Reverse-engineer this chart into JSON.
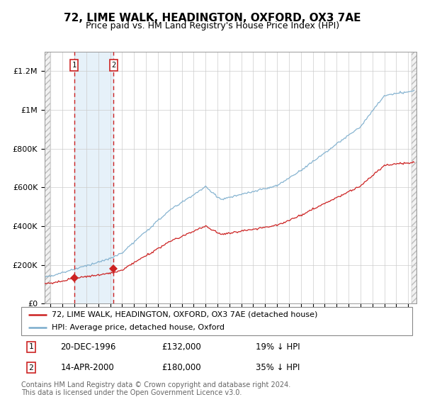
{
  "title": "72, LIME WALK, HEADINGTON, OXFORD, OX3 7AE",
  "subtitle": "Price paid vs. HM Land Registry's House Price Index (HPI)",
  "ylim": [
    0,
    1300000
  ],
  "yticks": [
    0,
    200000,
    400000,
    600000,
    800000,
    1000000,
    1200000
  ],
  "ytick_labels": [
    "£0",
    "£200K",
    "£400K",
    "£600K",
    "£800K",
    "£1M",
    "£1.2M"
  ],
  "xlim_start": 1994.5,
  "xlim_end": 2025.7,
  "sale1_date": 1996.97,
  "sale1_price": 132000,
  "sale1_label": "1",
  "sale1_hpi_pct": "19% ↓ HPI",
  "sale1_date_str": "20-DEC-1996",
  "sale2_date": 2000.28,
  "sale2_price": 180000,
  "sale2_label": "2",
  "sale2_hpi_pct": "35% ↓ HPI",
  "sale2_date_str": "14-APR-2000",
  "red_line_color": "#cc2222",
  "blue_line_color": "#7aaccc",
  "sale_marker_color": "#cc2222",
  "grid_color": "#cccccc",
  "vline_color": "#cc2222",
  "legend_label_red": "72, LIME WALK, HEADINGTON, OXFORD, OX3 7AE (detached house)",
  "legend_label_blue": "HPI: Average price, detached house, Oxford",
  "footer": "Contains HM Land Registry data © Crown copyright and database right 2024.\nThis data is licensed under the Open Government Licence v3.0.",
  "title_fontsize": 11,
  "subtitle_fontsize": 9,
  "tick_fontsize": 8,
  "legend_fontsize": 8,
  "footer_fontsize": 7
}
